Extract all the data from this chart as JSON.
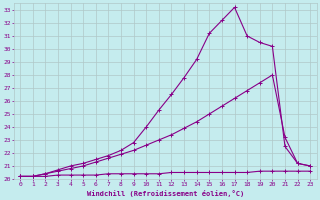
{
  "xlabel": "Windchill (Refroidissement éolien,°C)",
  "bg_color": "#c5ecee",
  "line_color": "#880088",
  "grid_color": "#b0c8c8",
  "xlim": [
    -0.5,
    23.5
  ],
  "ylim": [
    20,
    33.5
  ],
  "xticks": [
    0,
    1,
    2,
    3,
    4,
    5,
    6,
    7,
    8,
    9,
    10,
    11,
    12,
    13,
    14,
    15,
    16,
    17,
    18,
    19,
    20,
    21,
    22,
    23
  ],
  "yticks": [
    20,
    21,
    22,
    23,
    24,
    25,
    26,
    27,
    28,
    29,
    30,
    31,
    32,
    33
  ],
  "line1_x": [
    0,
    1,
    2,
    3,
    4,
    5,
    6,
    7,
    8,
    9,
    10,
    11,
    12,
    13,
    14,
    15,
    16,
    17,
    18,
    19,
    20,
    21,
    22,
    23
  ],
  "line1_y": [
    20.2,
    20.2,
    20.2,
    20.3,
    20.3,
    20.3,
    20.3,
    20.4,
    20.4,
    20.4,
    20.4,
    20.4,
    20.5,
    20.5,
    20.5,
    20.5,
    20.5,
    20.5,
    20.5,
    20.6,
    20.6,
    20.6,
    20.6,
    20.6
  ],
  "line2_x": [
    0,
    1,
    2,
    3,
    4,
    5,
    6,
    7,
    8,
    9,
    10,
    11,
    12,
    13,
    14,
    15,
    16,
    17,
    18,
    19,
    20,
    21,
    22,
    23
  ],
  "line2_y": [
    20.2,
    20.2,
    20.4,
    20.6,
    20.8,
    21.0,
    21.3,
    21.6,
    21.9,
    22.2,
    22.6,
    23.0,
    23.4,
    23.9,
    24.4,
    25.0,
    25.6,
    26.2,
    26.8,
    27.4,
    28.0,
    23.2,
    21.2,
    21.0
  ],
  "line3_x": [
    0,
    1,
    2,
    3,
    4,
    5,
    6,
    7,
    8,
    9,
    10,
    11,
    12,
    13,
    14,
    15,
    16,
    17,
    18,
    19,
    20,
    21,
    22,
    23
  ],
  "line3_y": [
    20.2,
    20.2,
    20.4,
    20.7,
    21.0,
    21.2,
    21.5,
    21.8,
    22.2,
    22.8,
    24.0,
    25.3,
    26.5,
    27.8,
    29.2,
    31.2,
    32.2,
    33.2,
    31.0,
    30.5,
    30.2,
    22.5,
    21.2,
    21.0
  ],
  "markersize": 3,
  "linewidth": 0.8
}
